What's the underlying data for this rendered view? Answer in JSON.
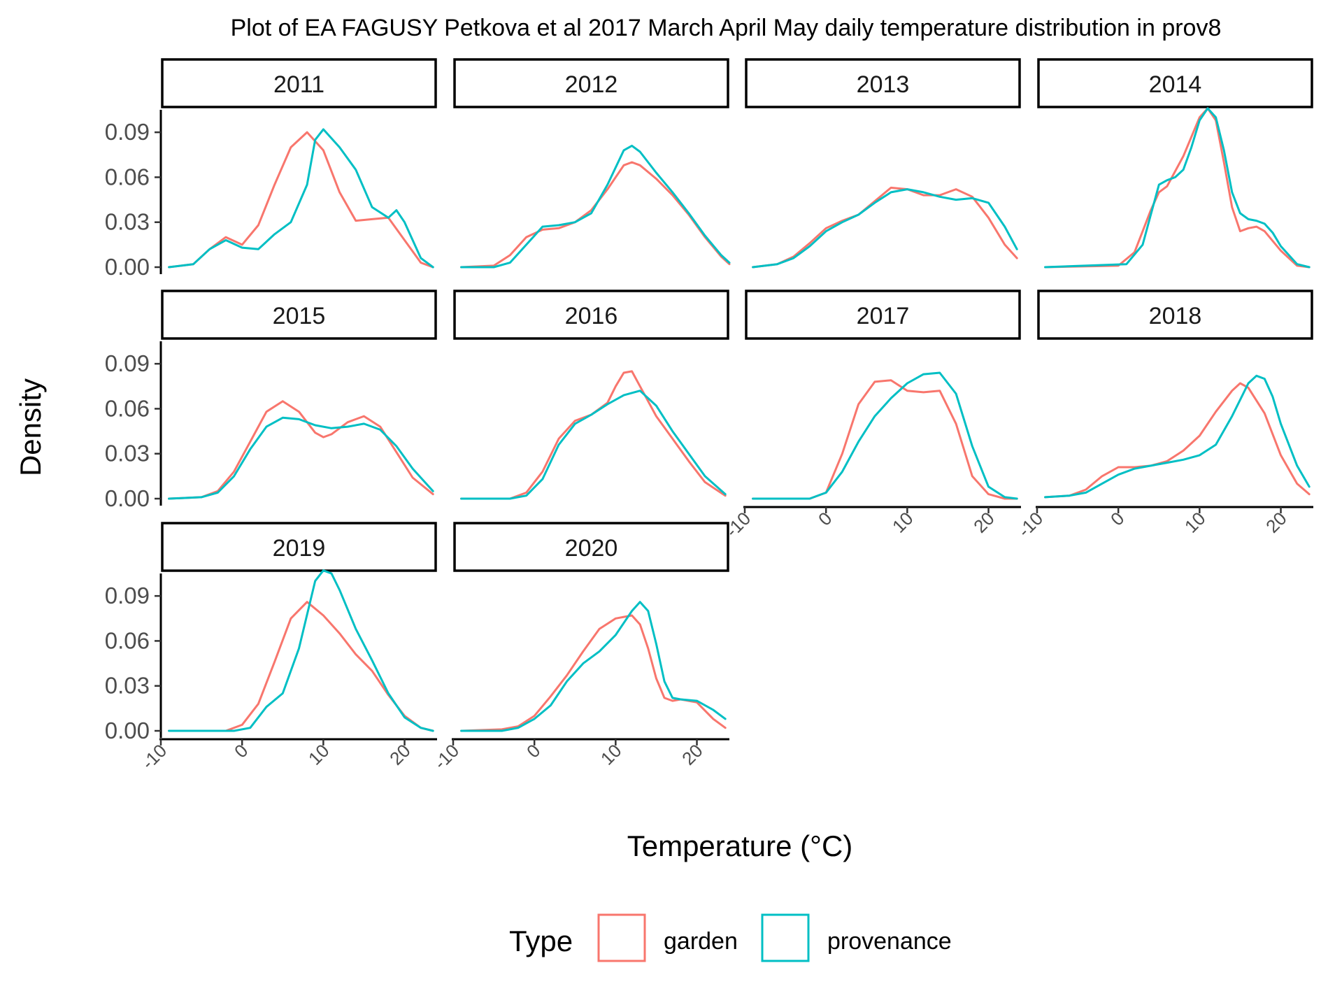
{
  "chart_data": {
    "type": "line",
    "title": "Plot of EA FAGUSY Petkova et al 2017 March April May daily temperature distribution in prov8",
    "xlabel": "Temperature (°C)",
    "ylabel": "Density",
    "xlim": [
      -10,
      24
    ],
    "ylim": [
      0,
      0.105
    ],
    "x_ticks": [
      -10,
      0,
      10,
      20
    ],
    "x_tick_labels": [
      "-10",
      "0",
      "10",
      "20"
    ],
    "y_ticks": [
      0,
      0.03,
      0.06,
      0.09
    ],
    "y_tick_labels": [
      "0.00",
      "0.03",
      "0.06",
      "0.09"
    ],
    "legend": {
      "title": "Type",
      "position": "bottom",
      "entries": [
        {
          "label": "garden",
          "color": "#F8766D"
        },
        {
          "label": "provenance",
          "color": "#00BFC4"
        }
      ]
    },
    "panels": [
      {
        "label": "2011",
        "series": [
          {
            "name": "garden",
            "x": [
              -9,
              -6,
              -4,
              -2,
              0,
              2,
              4,
              6,
              8,
              10,
              12,
              14,
              16,
              18,
              20,
              22,
              23.5
            ],
            "y": [
              0,
              0.002,
              0.012,
              0.02,
              0.015,
              0.028,
              0.055,
              0.08,
              0.09,
              0.078,
              0.05,
              0.031,
              0.032,
              0.033,
              0.018,
              0.003,
              0
            ]
          },
          {
            "name": "provenance",
            "x": [
              -9,
              -6,
              -4,
              -2,
              0,
              2,
              4,
              6,
              8,
              9,
              10,
              12,
              14,
              16,
              18,
              19,
              20,
              22,
              23.5
            ],
            "y": [
              0,
              0.002,
              0.012,
              0.018,
              0.013,
              0.012,
              0.022,
              0.03,
              0.055,
              0.085,
              0.092,
              0.08,
              0.065,
              0.04,
              0.033,
              0.038,
              0.03,
              0.006,
              0
            ]
          }
        ]
      },
      {
        "label": "2012",
        "series": [
          {
            "name": "garden",
            "x": [
              -9,
              -5,
              -3,
              -1,
              1,
              3,
              5,
              7,
              9,
              11,
              12,
              13,
              15,
              17,
              19,
              21,
              23,
              24
            ],
            "y": [
              0,
              0.001,
              0.008,
              0.02,
              0.025,
              0.026,
              0.03,
              0.038,
              0.052,
              0.068,
              0.07,
              0.068,
              0.059,
              0.048,
              0.035,
              0.02,
              0.007,
              0.002
            ]
          },
          {
            "name": "provenance",
            "x": [
              -9,
              -5,
              -3,
              -1,
              1,
              3,
              5,
              7,
              9,
              11,
              12,
              13,
              15,
              17,
              19,
              21,
              23,
              24
            ],
            "y": [
              0,
              0,
              0.003,
              0.015,
              0.027,
              0.028,
              0.03,
              0.036,
              0.055,
              0.078,
              0.081,
              0.077,
              0.063,
              0.05,
              0.036,
              0.021,
              0.008,
              0.003
            ]
          }
        ]
      },
      {
        "label": "2013",
        "series": [
          {
            "name": "garden",
            "x": [
              -9,
              -6,
              -4,
              -2,
              0,
              2,
              4,
              6,
              8,
              10,
              12,
              14,
              16,
              18,
              20,
              22,
              23.5
            ],
            "y": [
              0,
              0.002,
              0.007,
              0.016,
              0.026,
              0.031,
              0.035,
              0.044,
              0.053,
              0.052,
              0.048,
              0.048,
              0.052,
              0.047,
              0.033,
              0.015,
              0.006
            ]
          },
          {
            "name": "provenance",
            "x": [
              -9,
              -6,
              -4,
              -2,
              0,
              2,
              4,
              6,
              8,
              10,
              12,
              14,
              16,
              18,
              20,
              22,
              23.5
            ],
            "y": [
              0,
              0.002,
              0.006,
              0.014,
              0.024,
              0.03,
              0.035,
              0.043,
              0.05,
              0.052,
              0.05,
              0.047,
              0.045,
              0.046,
              0.043,
              0.027,
              0.012
            ]
          }
        ]
      },
      {
        "label": "2014",
        "series": [
          {
            "name": "garden",
            "x": [
              -9,
              0,
              2,
              4,
              5,
              6,
              8,
              10,
              11,
              12,
              13,
              14,
              15,
              16,
              17,
              18,
              20,
              22,
              23.5
            ],
            "y": [
              0,
              0.001,
              0.01,
              0.038,
              0.05,
              0.054,
              0.074,
              0.1,
              0.106,
              0.098,
              0.07,
              0.04,
              0.024,
              0.026,
              0.027,
              0.024,
              0.011,
              0.001,
              0
            ]
          },
          {
            "name": "provenance",
            "x": [
              -9,
              1,
              3,
              4,
              5,
              6,
              7,
              8,
              9,
              10,
              11,
              12,
              13,
              14,
              15,
              16,
              17,
              18,
              19,
              20,
              22,
              23.5
            ],
            "y": [
              0,
              0.002,
              0.015,
              0.035,
              0.055,
              0.058,
              0.06,
              0.065,
              0.08,
              0.098,
              0.106,
              0.1,
              0.078,
              0.05,
              0.036,
              0.032,
              0.031,
              0.029,
              0.023,
              0.014,
              0.002,
              0
            ]
          }
        ]
      },
      {
        "label": "2015",
        "series": [
          {
            "name": "garden",
            "x": [
              -9,
              -5,
              -3,
              -1,
              1,
              3,
              5,
              7,
              9,
              10,
              11,
              13,
              15,
              17,
              19,
              21,
              23.5
            ],
            "y": [
              0,
              0.001,
              0.005,
              0.018,
              0.038,
              0.058,
              0.065,
              0.058,
              0.044,
              0.041,
              0.043,
              0.051,
              0.055,
              0.048,
              0.031,
              0.014,
              0.003
            ]
          },
          {
            "name": "provenance",
            "x": [
              -9,
              -5,
              -3,
              -1,
              1,
              3,
              5,
              7,
              9,
              11,
              13,
              15,
              17,
              19,
              21,
              23.5
            ],
            "y": [
              0,
              0.001,
              0.004,
              0.015,
              0.033,
              0.048,
              0.054,
              0.053,
              0.049,
              0.047,
              0.048,
              0.05,
              0.046,
              0.035,
              0.02,
              0.005
            ]
          }
        ]
      },
      {
        "label": "2016",
        "series": [
          {
            "name": "garden",
            "x": [
              -9,
              -3,
              -1,
              1,
              3,
              5,
              7,
              9,
              10,
              11,
              12,
              13,
              15,
              17,
              19,
              21,
              23.5
            ],
            "y": [
              0,
              0,
              0.004,
              0.018,
              0.04,
              0.052,
              0.056,
              0.064,
              0.075,
              0.084,
              0.085,
              0.075,
              0.055,
              0.04,
              0.025,
              0.011,
              0.002
            ]
          },
          {
            "name": "provenance",
            "x": [
              -9,
              -3,
              -1,
              1,
              3,
              5,
              7,
              9,
              11,
              13,
              15,
              17,
              19,
              21,
              23.5
            ],
            "y": [
              0,
              0,
              0.002,
              0.013,
              0.036,
              0.05,
              0.056,
              0.063,
              0.069,
              0.072,
              0.062,
              0.045,
              0.03,
              0.015,
              0.003
            ]
          }
        ]
      },
      {
        "label": "2017",
        "series": [
          {
            "name": "garden",
            "x": [
              -9,
              -2,
              0,
              2,
              4,
              6,
              8,
              10,
              12,
              14,
              16,
              18,
              20,
              22,
              23.5
            ],
            "y": [
              0,
              0,
              0.004,
              0.03,
              0.063,
              0.078,
              0.079,
              0.072,
              0.071,
              0.072,
              0.05,
              0.015,
              0.003,
              0,
              0
            ]
          },
          {
            "name": "provenance",
            "x": [
              -9,
              -2,
              0,
              2,
              4,
              6,
              8,
              10,
              12,
              14,
              16,
              18,
              20,
              22,
              23.5
            ],
            "y": [
              0,
              0,
              0.004,
              0.018,
              0.038,
              0.055,
              0.067,
              0.077,
              0.083,
              0.084,
              0.07,
              0.035,
              0.008,
              0.001,
              0
            ]
          }
        ]
      },
      {
        "label": "2018",
        "series": [
          {
            "name": "garden",
            "x": [
              -9,
              -6,
              -4,
              -2,
              0,
              2,
              4,
              6,
              8,
              10,
              12,
              14,
              15,
              16,
              18,
              20,
              22,
              23.5
            ],
            "y": [
              0.001,
              0.002,
              0.006,
              0.015,
              0.021,
              0.021,
              0.022,
              0.025,
              0.032,
              0.042,
              0.058,
              0.072,
              0.077,
              0.074,
              0.057,
              0.029,
              0.01,
              0.003
            ]
          },
          {
            "name": "provenance",
            "x": [
              -9,
              -6,
              -4,
              -2,
              0,
              2,
              4,
              6,
              8,
              10,
              12,
              14,
              16,
              17,
              18,
              19,
              20,
              22,
              23.5
            ],
            "y": [
              0.001,
              0.002,
              0.004,
              0.01,
              0.016,
              0.02,
              0.022,
              0.024,
              0.026,
              0.029,
              0.036,
              0.055,
              0.077,
              0.082,
              0.08,
              0.068,
              0.05,
              0.022,
              0.008
            ]
          }
        ]
      },
      {
        "label": "2019",
        "series": [
          {
            "name": "garden",
            "x": [
              -9,
              -2,
              0,
              2,
              4,
              6,
              8,
              10,
              12,
              14,
              16,
              18,
              20,
              22,
              23.5
            ],
            "y": [
              0,
              0,
              0.004,
              0.018,
              0.046,
              0.075,
              0.086,
              0.077,
              0.065,
              0.051,
              0.04,
              0.024,
              0.01,
              0.002,
              0
            ]
          },
          {
            "name": "provenance",
            "x": [
              -9,
              -1,
              1,
              3,
              5,
              7,
              9,
              10,
              11,
              12,
              14,
              16,
              18,
              20,
              22,
              23.5
            ],
            "y": [
              0,
              0,
              0.002,
              0.016,
              0.025,
              0.055,
              0.1,
              0.107,
              0.105,
              0.094,
              0.068,
              0.047,
              0.025,
              0.009,
              0.002,
              0
            ]
          }
        ]
      },
      {
        "label": "2020",
        "series": [
          {
            "name": "garden",
            "x": [
              -9,
              -4,
              -2,
              0,
              2,
              4,
              6,
              8,
              10,
              12,
              13,
              14,
              15,
              16,
              17,
              18,
              20,
              22,
              23.5
            ],
            "y": [
              0,
              0.001,
              0.003,
              0.01,
              0.023,
              0.037,
              0.053,
              0.068,
              0.075,
              0.077,
              0.071,
              0.055,
              0.035,
              0.022,
              0.02,
              0.021,
              0.019,
              0.008,
              0.002
            ]
          },
          {
            "name": "provenance",
            "x": [
              -9,
              -4,
              -2,
              0,
              2,
              4,
              6,
              8,
              10,
              12,
              13,
              14,
              15,
              16,
              17,
              18,
              20,
              22,
              23.5
            ],
            "y": [
              0,
              0,
              0.002,
              0.008,
              0.017,
              0.033,
              0.045,
              0.053,
              0.064,
              0.08,
              0.086,
              0.08,
              0.058,
              0.033,
              0.022,
              0.021,
              0.02,
              0.014,
              0.008
            ]
          }
        ]
      }
    ]
  }
}
